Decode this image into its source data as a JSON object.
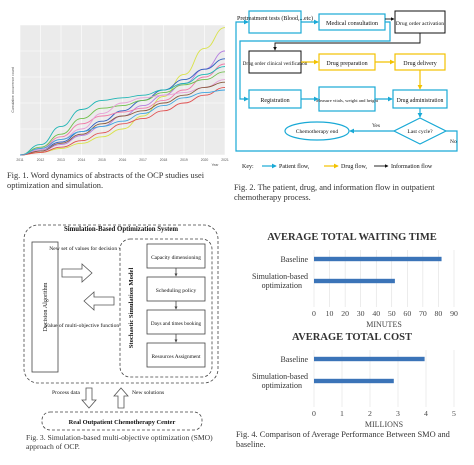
{
  "fig1": {
    "caption": "Fig. 1. Word dynamics of abstracts of the OCP studies usei optimization and simulation.",
    "chart_data": {
      "type": "line",
      "x": [
        2011,
        2012,
        2013,
        2014,
        2015,
        2016,
        2017,
        2018,
        2019,
        2020,
        2021
      ],
      "xtick_labels": [
        "2011",
        "2012",
        "2013",
        "2014",
        "2015",
        "2016",
        "2017",
        "2018",
        "2019",
        "2020",
        "2021"
      ],
      "xlabel": "Year",
      "ylabel": "Cumulative occurrence count",
      "ylim": [
        0,
        100
      ],
      "grid": true,
      "series": [
        {
          "color": "#d9e24b",
          "values": [
            0,
            2,
            5,
            9,
            14,
            20,
            30,
            45,
            62,
            82,
            98
          ]
        },
        {
          "color": "#b57fe0",
          "values": [
            0,
            3,
            8,
            15,
            22,
            30,
            38,
            46,
            55,
            66,
            80
          ]
        },
        {
          "color": "#2f5fbf",
          "values": [
            0,
            4,
            10,
            18,
            26,
            34,
            42,
            50,
            58,
            66,
            74
          ]
        },
        {
          "color": "#f07aa8",
          "values": [
            0,
            5,
            14,
            24,
            30,
            33,
            36,
            42,
            50,
            60,
            70
          ]
        },
        {
          "color": "#1fb5b5",
          "values": [
            0,
            8,
            22,
            35,
            42,
            44,
            46,
            50,
            55,
            62,
            68
          ]
        },
        {
          "color": "#6fbf4a",
          "values": [
            0,
            6,
            16,
            28,
            36,
            38,
            42,
            48,
            54,
            58,
            64
          ]
        },
        {
          "color": "#e8a0d8",
          "values": [
            0,
            4,
            12,
            20,
            32,
            40,
            44,
            46,
            48,
            52,
            58
          ]
        },
        {
          "color": "#8a5a3c",
          "values": [
            0,
            3,
            9,
            16,
            24,
            30,
            34,
            40,
            46,
            52,
            56
          ]
        },
        {
          "color": "#e05050",
          "values": [
            0,
            2,
            6,
            11,
            17,
            24,
            28,
            34,
            40,
            46,
            52
          ]
        },
        {
          "color": "#3fa6e0",
          "values": [
            0,
            5,
            12,
            18,
            22,
            26,
            32,
            38,
            44,
            48,
            50
          ]
        }
      ]
    }
  },
  "fig2": {
    "caption": "Fig. 2. The patient, drug, and information flow in outpatient chemotherapy process.",
    "nodes": {
      "pretreatment": "Pretreatment tests (Blood,...etc)",
      "medical_consultation": "Medical consultation",
      "drug_order_activation": "Drug order activation",
      "drug_order_verification": "Drug order clinical verification",
      "drug_preparation": "Drug preparation",
      "drug_delivery": "Drug delivery",
      "registration": "Registration",
      "measure_vitals": "Measure vitals, weight and height",
      "drug_administration": "Drug administration",
      "last_cycle": "Last cycle?",
      "chemotherapy_end": "Chemotherapy end",
      "yes": "Yes",
      "no": "No"
    },
    "key": {
      "label": "Key:",
      "patient_flow": "Patient flow,",
      "drug_flow": "Drug flow,",
      "information_flow": "Information flow"
    },
    "colors": {
      "patient": "#19a9d6",
      "drug": "#f2c200",
      "info": "#111111"
    }
  },
  "fig3": {
    "caption": "Fig. 3. Simulation-based multi-objective optimization (SMO) approach of OCP.",
    "system_title": "Simulation-Based Optimization System",
    "decision_algorithm": "Decision Algorithm",
    "new_values": "New set of values for decision variables",
    "objective_value": "Value of multi-objective function",
    "stochastic_model": "Stochastic Simulation Model",
    "steps": [
      "Capacity dimensioning",
      "Scheduling policy",
      "Days and times booking",
      "Resources Assignment"
    ],
    "process_data": "Process data",
    "new_solutions": "New solutions",
    "center": "Real Outpatient Chemotherapy Center"
  },
  "fig4": {
    "caption": "Fig. 4. Comparison of Average Performance Between SMO and baseline.",
    "chart_data": [
      {
        "type": "bar",
        "title": "AVERAGE TOTAL WAITING TIME",
        "categories": [
          "Baseline",
          "Simulation-based optimization"
        ],
        "values": [
          82,
          52
        ],
        "xlabel": "MINUTES",
        "xlim": [
          0,
          90
        ],
        "xticks": [
          0,
          10,
          20,
          30,
          40,
          50,
          60,
          70,
          80,
          90
        ],
        "color": "#3b74b8"
      },
      {
        "type": "bar",
        "title": "AVERAGE TOTAL COST",
        "categories": [
          "Baseline",
          "Simulation-based optimization"
        ],
        "values": [
          3.95,
          2.85
        ],
        "xlabel": "MILLIONS",
        "xlim": [
          0,
          5
        ],
        "xticks": [
          0,
          1,
          2,
          3,
          4,
          5
        ],
        "color": "#3b74b8"
      }
    ]
  }
}
